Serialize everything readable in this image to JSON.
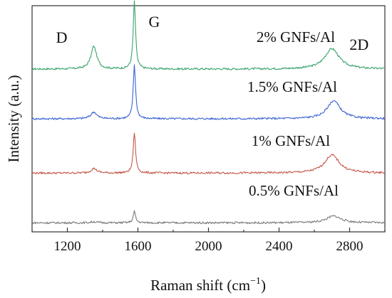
{
  "chart_data": {
    "type": "line",
    "title": "",
    "xlabel": "Raman shift (cm",
    "xlabel_sup": "−1",
    "xlabel_close": ")",
    "ylabel": "Intensity (a.u.)",
    "xlim": [
      1000,
      3000
    ],
    "ylim": [
      0,
      100
    ],
    "xticks": [
      1200,
      1600,
      2000,
      2400,
      2800
    ],
    "xtick_labels": [
      "1200",
      "1600",
      "2000",
      "2400",
      "2800"
    ],
    "grid": false,
    "y_tick_labels_shown": false,
    "peak_labels": [
      {
        "text": "D",
        "x": 1350
      },
      {
        "text": "G",
        "x": 1580
      },
      {
        "text": "2D",
        "x": 2700
      }
    ],
    "series": [
      {
        "name": "2% GNFs/Al",
        "color": "#3aa36b",
        "baseline": 72,
        "peaks": [
          {
            "center": 1350,
            "height": 10,
            "width": 20
          },
          {
            "center": 1580,
            "height": 30,
            "width": 8
          },
          {
            "center": 2700,
            "height": 9,
            "width": 50
          }
        ]
      },
      {
        "name": "1.5% GNFs/Al",
        "color": "#3b63d1",
        "baseline": 50,
        "peaks": [
          {
            "center": 1350,
            "height": 3,
            "width": 20
          },
          {
            "center": 1580,
            "height": 24,
            "width": 8
          },
          {
            "center": 2710,
            "height": 8,
            "width": 45
          }
        ]
      },
      {
        "name": "1% GNFs/Al",
        "color": "#c4584a",
        "baseline": 26,
        "peaks": [
          {
            "center": 1350,
            "height": 2,
            "width": 20
          },
          {
            "center": 1580,
            "height": 18,
            "width": 8
          },
          {
            "center": 2700,
            "height": 8,
            "width": 50
          }
        ]
      },
      {
        "name": "0.5% GNFs/Al",
        "color": "#7a7a7a",
        "baseline": 4,
        "peaks": [
          {
            "center": 1350,
            "height": 0.5,
            "width": 20
          },
          {
            "center": 1580,
            "height": 5,
            "width": 8
          },
          {
            "center": 2710,
            "height": 3,
            "width": 50
          }
        ]
      }
    ]
  }
}
